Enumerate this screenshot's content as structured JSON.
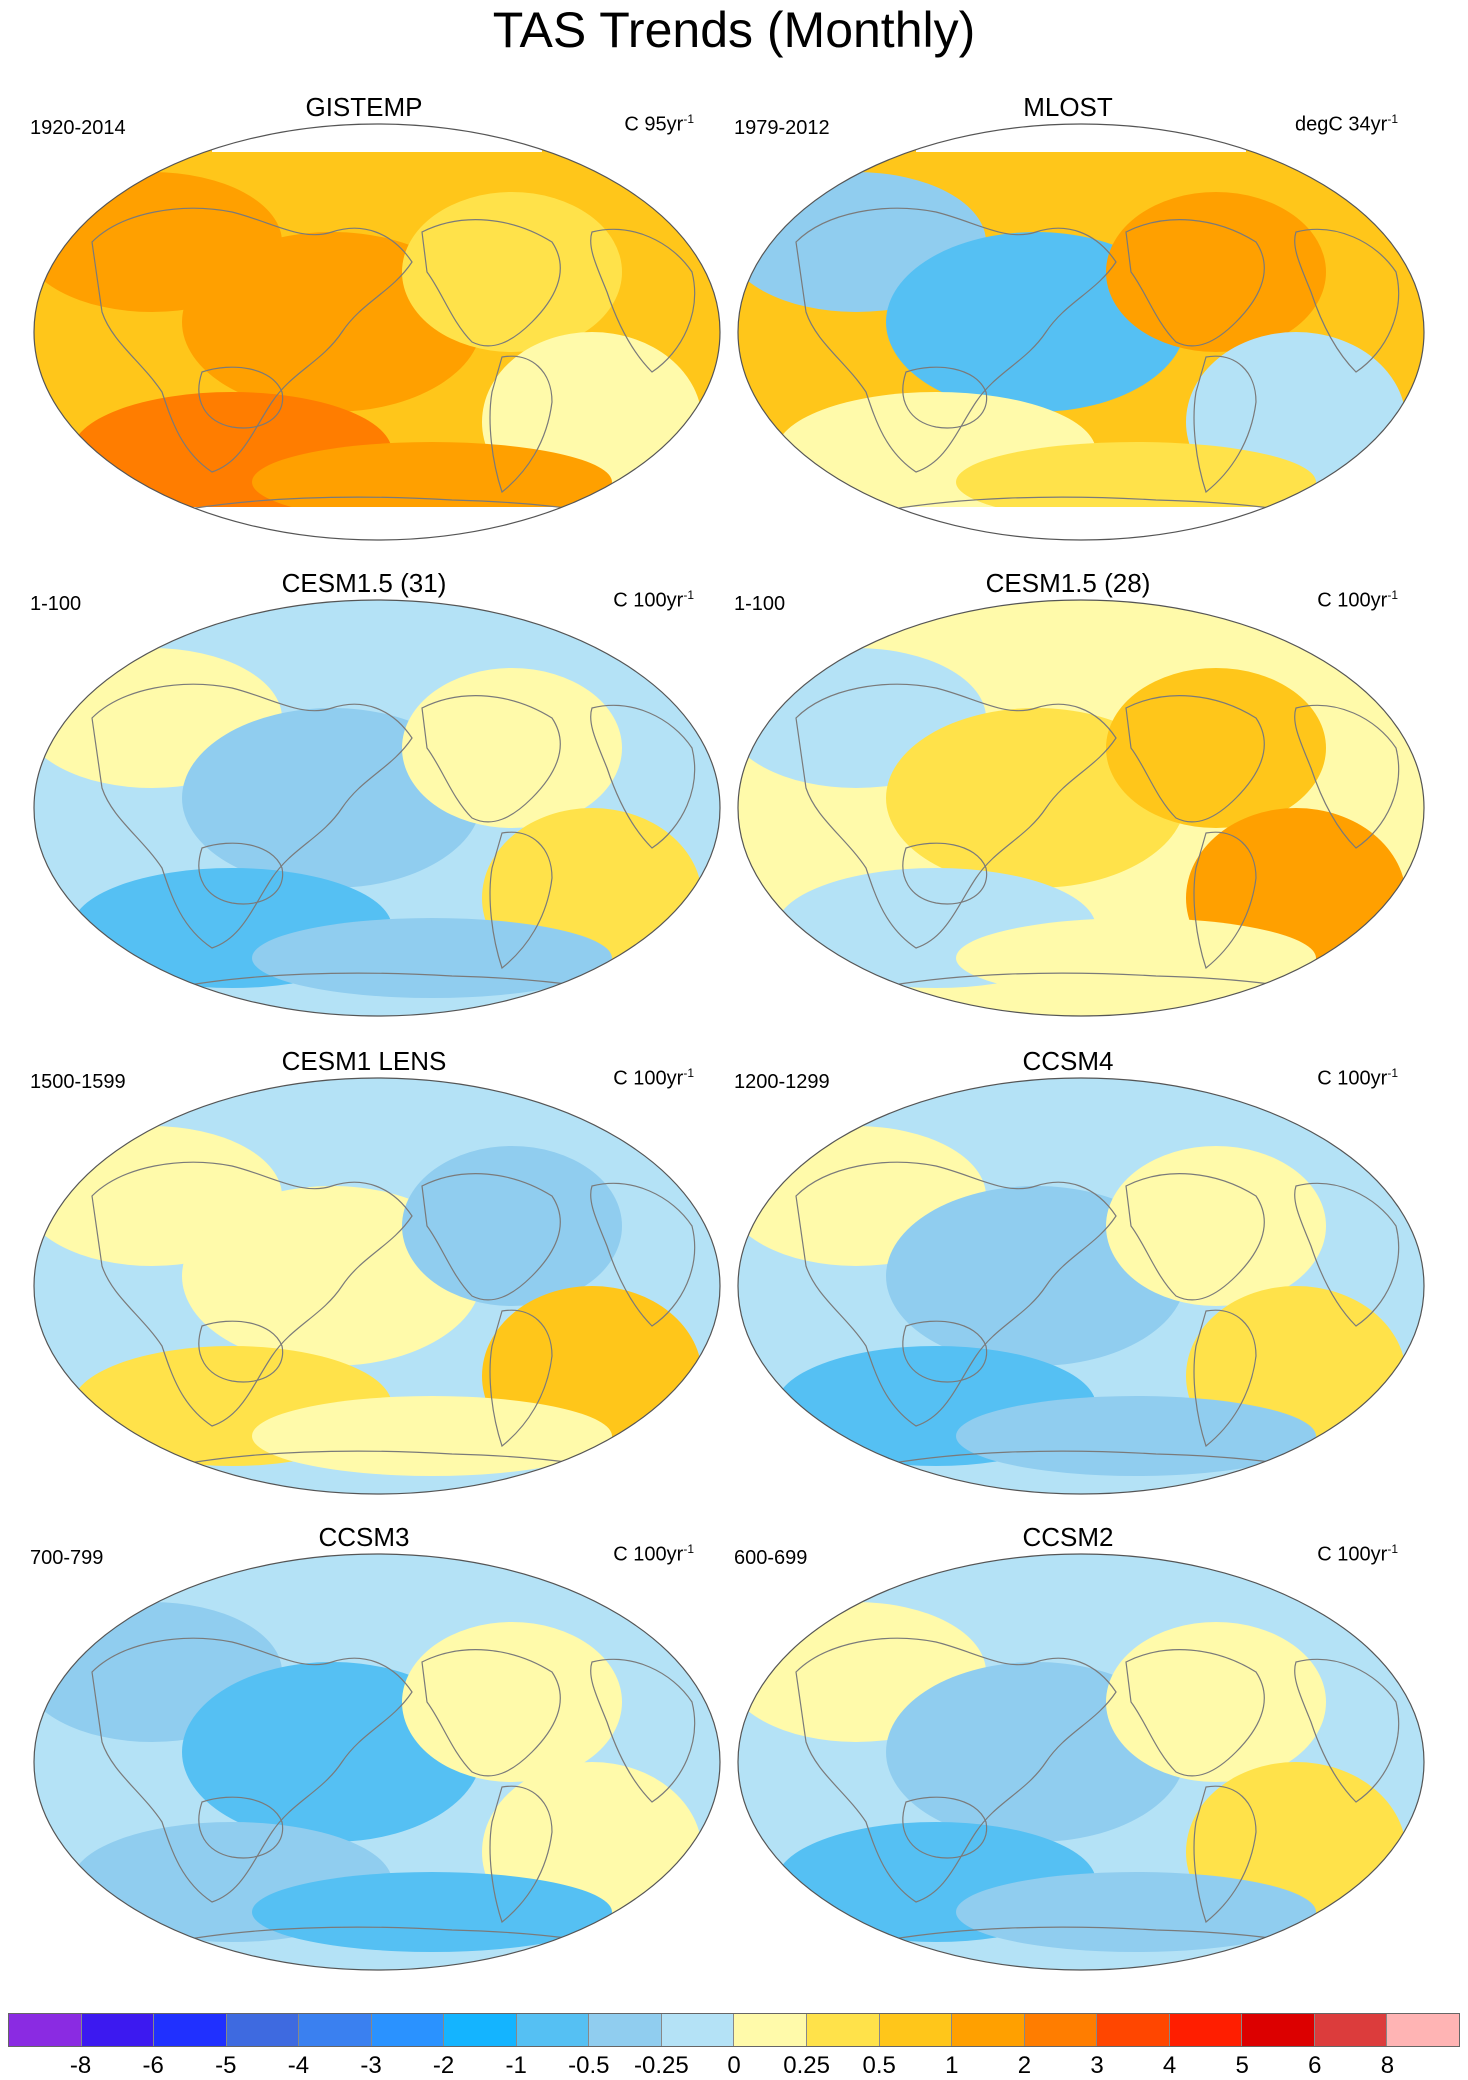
{
  "title": "TAS Trends (Monthly)",
  "panels": [
    {
      "title": "GISTEMP",
      "period": "1920-2014",
      "units": "C 95yr",
      "units_exp": "-1",
      "scheme": "warm",
      "missing": true
    },
    {
      "title": "MLOST",
      "period": "1979-2012",
      "units": "degC 34yr",
      "units_exp": "-1",
      "scheme": "mixed-warm",
      "missing": true
    },
    {
      "title": "CESM1.5 (31)",
      "period": "1-100",
      "units": "C 100yr",
      "units_exp": "-1",
      "scheme": "cool-light"
    },
    {
      "title": "CESM1.5 (28)",
      "period": "1-100",
      "units": "C 100yr",
      "units_exp": "-1",
      "scheme": "warm-light"
    },
    {
      "title": "CESM1 LENS",
      "period": "1500-1599",
      "units": "C 100yr",
      "units_exp": "-1",
      "scheme": "neutral"
    },
    {
      "title": "CCSM4",
      "period": "1200-1299",
      "units": "C 100yr",
      "units_exp": "-1",
      "scheme": "neutral-cool"
    },
    {
      "title": "CCSM3",
      "period": "700-799",
      "units": "C 100yr",
      "units_exp": "-1",
      "scheme": "cool"
    },
    {
      "title": "CCSM2",
      "period": "600-699",
      "units": "C 100yr",
      "units_exp": "-1",
      "scheme": "cool-light"
    }
  ],
  "colorbar": {
    "colors": [
      "#8a2be2",
      "#3c19f0",
      "#2030ff",
      "#3e6ae0",
      "#3a80f0",
      "#2a92ff",
      "#14b4ff",
      "#55c0f3",
      "#90cdef",
      "#b4e2f6",
      "#fffaaa",
      "#ffe24a",
      "#ffc61a",
      "#ffa000",
      "#ff7d00",
      "#ff4600",
      "#ff1e00",
      "#dc0000",
      "#dc3c3c",
      "#ffb4b4"
    ],
    "labels": [
      "-8",
      "-6",
      "-5",
      "-4",
      "-3",
      "-2",
      "-1",
      "-0.5",
      "-0.25",
      "0",
      "0.25",
      "0.5",
      "1",
      "2",
      "3",
      "4",
      "5",
      "6",
      "8"
    ]
  }
}
